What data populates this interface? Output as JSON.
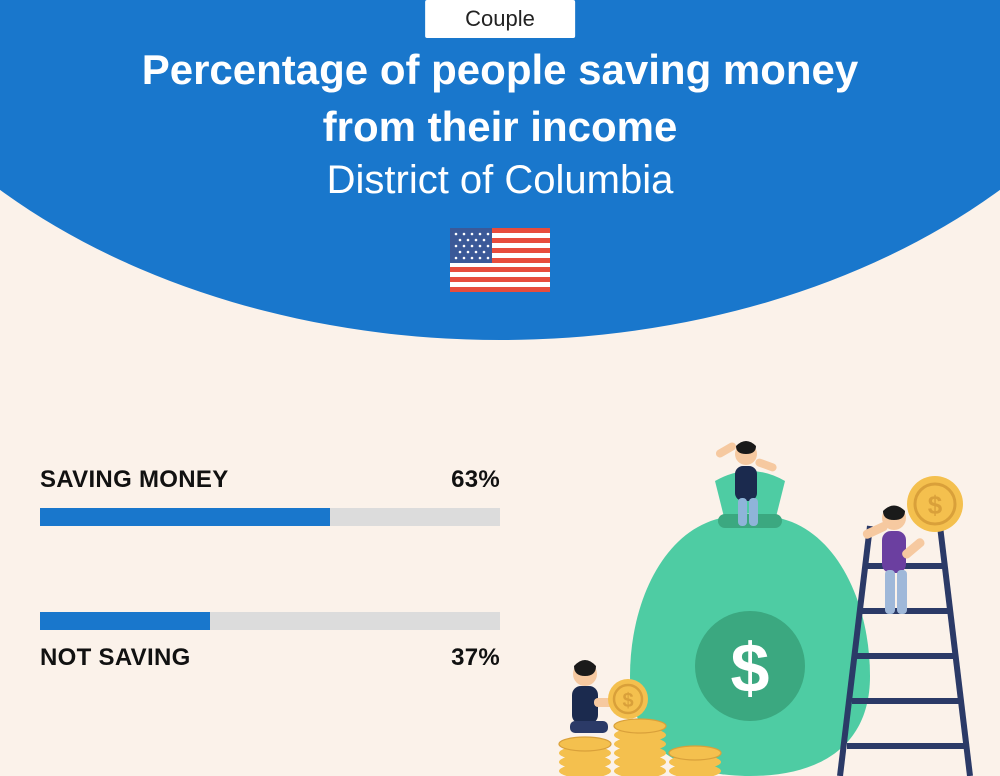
{
  "pill": "Couple",
  "title_line1": "Percentage of people saving money",
  "title_line2": "from their income",
  "subtitle": "District of Columbia",
  "flag": {
    "bg": "#ffffff",
    "stripe": "#e74c3c",
    "canton": "#3b5998",
    "star": "#ffffff"
  },
  "colors": {
    "header": "#1977cc",
    "page_bg": "#fbf2ea",
    "bar_fill": "#1977cc",
    "bar_track": "#dcdcdc",
    "text": "#111111",
    "title_text": "#ffffff"
  },
  "bars": [
    {
      "label": "SAVING MONEY",
      "value": 63,
      "display": "63%",
      "label_position": "top"
    },
    {
      "label": "NOT SAVING",
      "value": 37,
      "display": "37%",
      "label_position": "bottom"
    }
  ],
  "illustration": {
    "bag": "#4ecca3",
    "bag_dark": "#3ba880",
    "coin": "#f4c04e",
    "coin_dark": "#d9a03a",
    "ladder": "#2b3a67",
    "skin": "#f6c9a0",
    "person1_shirt": "#1b2a4e",
    "person1_pants": "#8fb4d9",
    "person2_shirt": "#6b3fa0",
    "person2_pants": "#9fb8d9",
    "person3_shirt": "#1b2a4e",
    "person3_pants": "#2b3a67",
    "hair": "#1a1a1a",
    "dollar": "#ffffff"
  }
}
